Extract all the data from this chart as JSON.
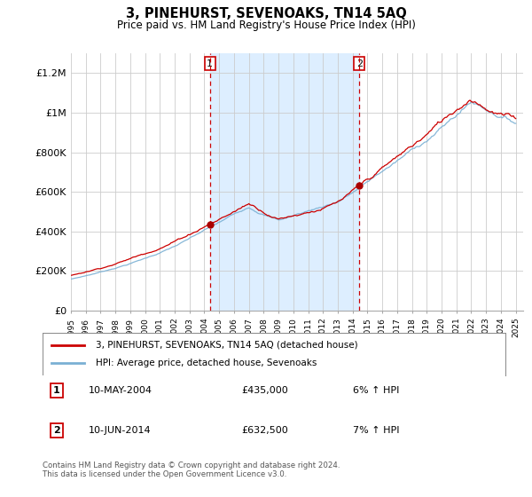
{
  "title": "3, PINEHURST, SEVENOAKS, TN14 5AQ",
  "subtitle": "Price paid vs. HM Land Registry's House Price Index (HPI)",
  "footer": "Contains HM Land Registry data © Crown copyright and database right 2024.\nThis data is licensed under the Open Government Licence v3.0.",
  "ylabel_ticks": [
    "£0",
    "£200K",
    "£400K",
    "£600K",
    "£800K",
    "£1M",
    "£1.2M"
  ],
  "ytick_values": [
    0,
    200000,
    400000,
    600000,
    800000,
    1000000,
    1200000
  ],
  "ylim": [
    0,
    1300000
  ],
  "xlim_start": 1995,
  "xlim_end": 2025.5,
  "red_color": "#cc0000",
  "blue_color": "#7ab0d4",
  "marker1_x": 2004.37,
  "marker2_x": 2014.45,
  "marker1_y": 435000,
  "marker2_y": 632500,
  "dot_color": "#aa0000",
  "span_color": "#ddeeff",
  "annotation1": {
    "label": "1",
    "date": "10-MAY-2004",
    "price": "£435,000",
    "pct": "6% ↑ HPI"
  },
  "annotation2": {
    "label": "2",
    "date": "10-JUN-2014",
    "price": "£632,500",
    "pct": "7% ↑ HPI"
  },
  "legend1": "3, PINEHURST, SEVENOAKS, TN14 5AQ (detached house)",
  "legend2": "HPI: Average price, detached house, Sevenoaks",
  "bg_color": "#ffffff"
}
